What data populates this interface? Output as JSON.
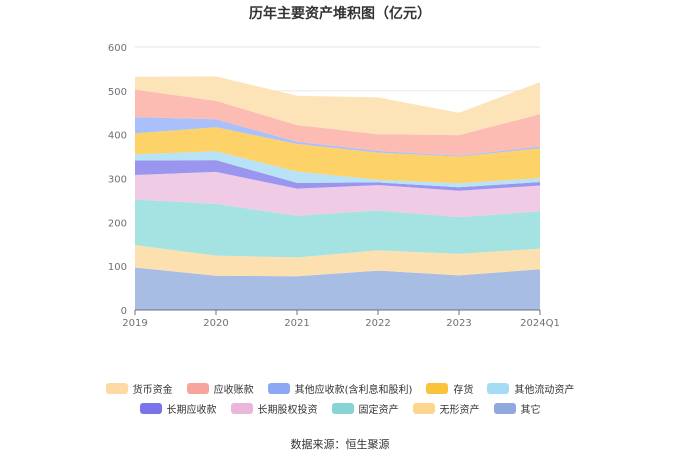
{
  "chart_data": {
    "type": "area",
    "stacked": true,
    "title": "历年主要资产堆积图（亿元）",
    "x": [
      "2019",
      "2020",
      "2021",
      "2022",
      "2023",
      "2024Q1"
    ],
    "ylim": [
      0,
      600
    ],
    "yticks": [
      0,
      100,
      200,
      300,
      400,
      500,
      600
    ],
    "grid": true,
    "legend_position": "bottom",
    "series": [
      {
        "name": "其它",
        "color": "#a8bde3",
        "values": [
          97,
          78,
          77,
          90,
          79,
          93
        ]
      },
      {
        "name": "无形资产",
        "color": "#fde0b0",
        "values": [
          51,
          46,
          43,
          46,
          49,
          47
        ]
      },
      {
        "name": "固定资产",
        "color": "#a5e2e2",
        "values": [
          104,
          118,
          95,
          91,
          84,
          85
        ]
      },
      {
        "name": "长期股权投资",
        "color": "#f0cbe6",
        "values": [
          56,
          73,
          62,
          58,
          60,
          59
        ]
      },
      {
        "name": "长期应收款",
        "color": "#9a96f0",
        "values": [
          33,
          27,
          13,
          6,
          8,
          8
        ]
      },
      {
        "name": "其他流动资产",
        "color": "#b8e2f5",
        "values": [
          14,
          20,
          26,
          6,
          9,
          9
        ]
      },
      {
        "name": "存货",
        "color": "#fdd268",
        "values": [
          48,
          55,
          63,
          62,
          61,
          68
        ]
      },
      {
        "name": "其他应收款(含利息和股利)",
        "color": "#a9c0fa",
        "values": [
          37,
          18,
          5,
          4,
          2,
          4
        ]
      },
      {
        "name": "应收账款",
        "color": "#fcbcb4",
        "values": [
          63,
          42,
          38,
          38,
          47,
          74
        ]
      },
      {
        "name": "货币资金",
        "color": "#fde4b8",
        "values": [
          29,
          56,
          67,
          84,
          51,
          73
        ]
      }
    ],
    "source": "数据来源：恒生聚源"
  },
  "legend_rows": [
    [
      {
        "label": "货币资金",
        "color": "#fdd9a4"
      },
      {
        "label": "应收账款",
        "color": "#f8a49c"
      },
      {
        "label": "其他应收款(含利息和股利)",
        "color": "#8aa8f6"
      },
      {
        "label": "存货",
        "color": "#fbc33a"
      },
      {
        "label": "其他流动资产",
        "color": "#a4dcf6"
      }
    ],
    [
      {
        "label": "长期应收款",
        "color": "#7a74ec"
      },
      {
        "label": "长期股权投资",
        "color": "#e9b7dc"
      },
      {
        "label": "固定资产",
        "color": "#86d4d4"
      },
      {
        "label": "无形资产",
        "color": "#fcd68e"
      },
      {
        "label": "其它",
        "color": "#8fa8de"
      }
    ]
  ]
}
